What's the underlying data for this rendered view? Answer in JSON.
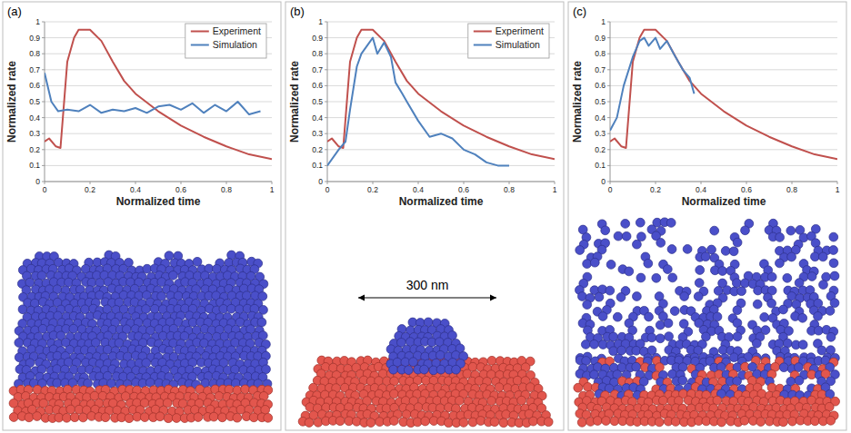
{
  "chart_data": [
    {
      "type": "line",
      "label": "(a)",
      "x_label": "Normalized time",
      "y_label": "Normalized rate",
      "xlim": [
        0,
        1
      ],
      "xticks": [
        0,
        0.2,
        0.4,
        0.6,
        0.8,
        1
      ],
      "ylim": [
        0,
        1
      ],
      "yticks": [
        0,
        0.1,
        0.2,
        0.3,
        0.4,
        0.5,
        0.6,
        0.7,
        0.8,
        0.9,
        1
      ],
      "grid": true,
      "legend": "top-right",
      "series": [
        {
          "name": "Experiment",
          "color": "#c0504d",
          "x": [
            0,
            0.02,
            0.05,
            0.07,
            0.1,
            0.13,
            0.15,
            0.2,
            0.25,
            0.3,
            0.35,
            0.4,
            0.5,
            0.6,
            0.7,
            0.8,
            0.9,
            1
          ],
          "values": [
            0.25,
            0.27,
            0.22,
            0.21,
            0.75,
            0.9,
            0.95,
            0.95,
            0.88,
            0.75,
            0.63,
            0.55,
            0.44,
            0.35,
            0.28,
            0.22,
            0.17,
            0.14
          ]
        },
        {
          "name": "Simulation",
          "color": "#4f81bd",
          "x": [
            0,
            0.03,
            0.06,
            0.1,
            0.15,
            0.2,
            0.25,
            0.3,
            0.35,
            0.4,
            0.45,
            0.5,
            0.55,
            0.6,
            0.65,
            0.7,
            0.75,
            0.8,
            0.85,
            0.9,
            0.95
          ],
          "values": [
            0.68,
            0.5,
            0.44,
            0.45,
            0.44,
            0.48,
            0.43,
            0.45,
            0.44,
            0.46,
            0.43,
            0.47,
            0.48,
            0.45,
            0.49,
            0.43,
            0.48,
            0.44,
            0.5,
            0.42,
            0.44
          ]
        }
      ]
    },
    {
      "type": "line",
      "label": "(b)",
      "x_label": "Normalized time",
      "y_label": "Normalized rate",
      "xlim": [
        0,
        1
      ],
      "xticks": [
        0,
        0.2,
        0.4,
        0.6,
        0.8,
        1
      ],
      "ylim": [
        0,
        1
      ],
      "yticks": [
        0,
        0.1,
        0.2,
        0.3,
        0.4,
        0.5,
        0.6,
        0.7,
        0.8,
        0.9,
        1
      ],
      "grid": true,
      "legend": "top-right",
      "annotations": [
        "300 nm"
      ],
      "series": [
        {
          "name": "Experiment",
          "color": "#c0504d",
          "x": [
            0,
            0.02,
            0.05,
            0.07,
            0.1,
            0.13,
            0.15,
            0.2,
            0.25,
            0.3,
            0.35,
            0.4,
            0.5,
            0.6,
            0.7,
            0.8,
            0.9,
            1
          ],
          "values": [
            0.25,
            0.27,
            0.22,
            0.21,
            0.75,
            0.9,
            0.95,
            0.95,
            0.88,
            0.75,
            0.63,
            0.55,
            0.44,
            0.35,
            0.28,
            0.22,
            0.17,
            0.14
          ]
        },
        {
          "name": "Simulation",
          "color": "#4f81bd",
          "x": [
            0,
            0.05,
            0.08,
            0.1,
            0.13,
            0.15,
            0.18,
            0.2,
            0.22,
            0.25,
            0.28,
            0.3,
            0.33,
            0.35,
            0.4,
            0.45,
            0.5,
            0.55,
            0.6,
            0.65,
            0.7,
            0.75,
            0.8
          ],
          "values": [
            0.1,
            0.2,
            0.25,
            0.45,
            0.72,
            0.8,
            0.86,
            0.9,
            0.8,
            0.87,
            0.78,
            0.62,
            0.55,
            0.5,
            0.38,
            0.28,
            0.3,
            0.27,
            0.2,
            0.17,
            0.12,
            0.1,
            0.1
          ]
        }
      ]
    },
    {
      "type": "line",
      "label": "(c)",
      "x_label": "Normalized time",
      "y_label": "Normalized rate",
      "xlim": [
        0,
        1
      ],
      "xticks": [
        0,
        0.2,
        0.4,
        0.6,
        0.8,
        1
      ],
      "ylim": [
        0,
        1
      ],
      "yticks": [
        0,
        0.1,
        0.2,
        0.3,
        0.4,
        0.5,
        0.6,
        0.7,
        0.8,
        0.9,
        1
      ],
      "grid": true,
      "series": [
        {
          "color": "#c0504d",
          "x": [
            0,
            0.02,
            0.05,
            0.07,
            0.1,
            0.13,
            0.15,
            0.2,
            0.25,
            0.3,
            0.35,
            0.4,
            0.5,
            0.6,
            0.7,
            0.8,
            0.9,
            1
          ],
          "values": [
            0.25,
            0.27,
            0.22,
            0.21,
            0.75,
            0.9,
            0.95,
            0.95,
            0.88,
            0.75,
            0.63,
            0.55,
            0.44,
            0.35,
            0.28,
            0.22,
            0.17,
            0.14
          ]
        },
        {
          "color": "#4f81bd",
          "x": [
            0,
            0.03,
            0.06,
            0.1,
            0.13,
            0.15,
            0.17,
            0.2,
            0.22,
            0.25,
            0.28,
            0.3,
            0.32,
            0.35,
            0.37
          ],
          "values": [
            0.32,
            0.4,
            0.6,
            0.78,
            0.88,
            0.9,
            0.85,
            0.9,
            0.83,
            0.88,
            0.8,
            0.75,
            0.7,
            0.65,
            0.55
          ]
        }
      ]
    }
  ]
}
